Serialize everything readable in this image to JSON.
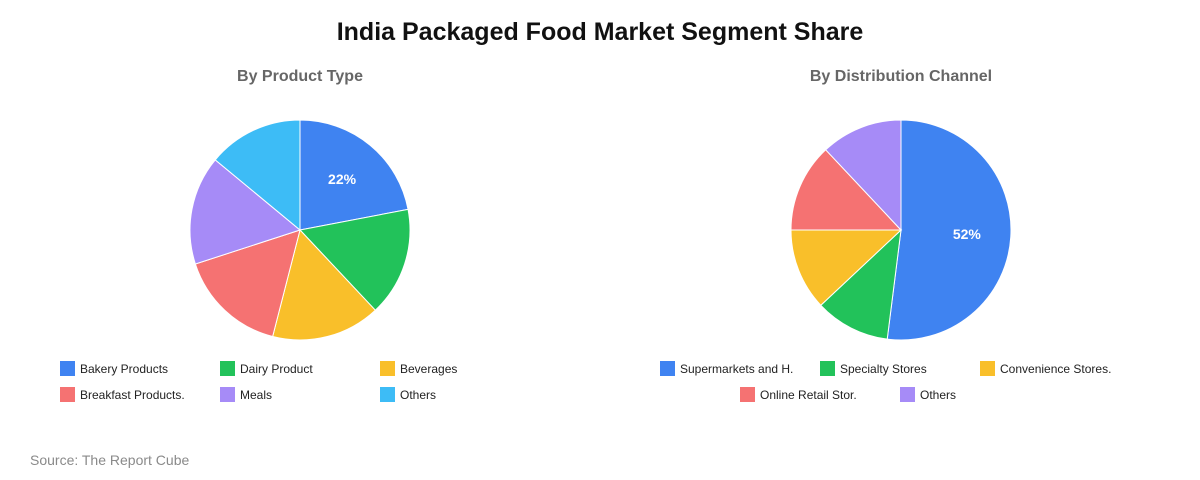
{
  "title": "India Packaged Food Market Segment Share",
  "source": "Source: The Report Cube",
  "colors": {
    "blue": "#3f83f1",
    "green": "#22c25a",
    "yellow": "#f9bf2a",
    "red": "#f57272",
    "purple": "#a68bf7",
    "cyan": "#3dbcf6"
  },
  "chart_data": [
    {
      "type": "pie",
      "title": "By Product Type",
      "labels": [
        "Bakery Products",
        "Dairy Product",
        "Beverages",
        "Breakfast Products.",
        "Meals",
        "Others"
      ],
      "values": [
        22,
        16,
        16,
        16,
        16,
        14
      ],
      "colors": [
        "#3f83f1",
        "#22c25a",
        "#f9bf2a",
        "#f57272",
        "#a68bf7",
        "#3dbcf6"
      ],
      "data_labels": [
        "22%",
        "",
        "",
        "",
        "",
        ""
      ],
      "legend": "bottom"
    },
    {
      "type": "pie",
      "title": "By Distribution Channel",
      "labels": [
        "Supermarkets and H.",
        "Specialty Stores",
        "Convenience Stores.",
        "Online Retail Stor.",
        "Others"
      ],
      "values": [
        52,
        11,
        12,
        13,
        12
      ],
      "colors": [
        "#3f83f1",
        "#22c25a",
        "#f9bf2a",
        "#f57272",
        "#a68bf7"
      ],
      "data_labels": [
        "52%",
        "",
        "",
        "",
        ""
      ],
      "legend": "bottom"
    }
  ]
}
